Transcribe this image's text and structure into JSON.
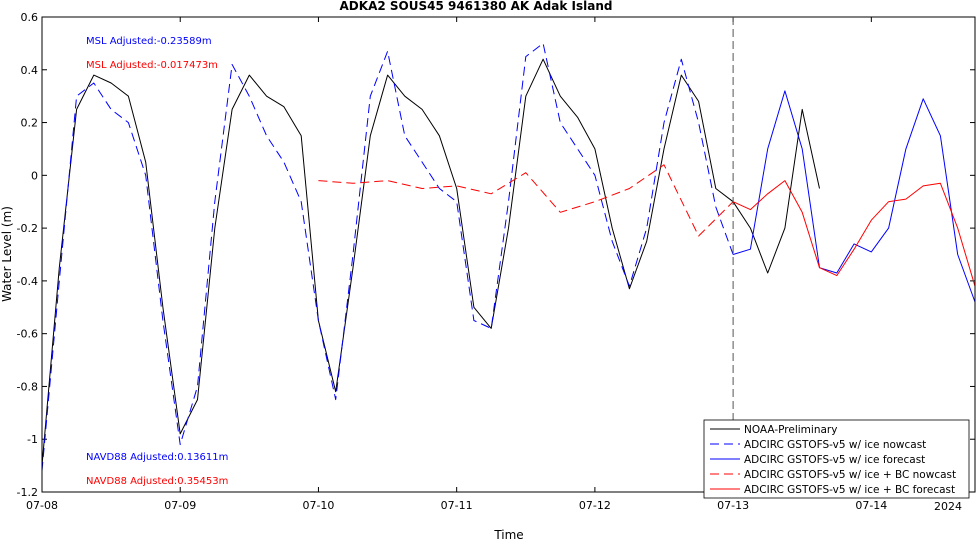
{
  "chart_data": {
    "type": "line",
    "title": "ADKA2 SOUS45 9461380 AK Adak Island",
    "xlabel": "Time",
    "ylabel": "Water Level (m)",
    "year_label": "2024",
    "xlim": [
      "07-08 00:00",
      "07-14 18:00"
    ],
    "ylim": [
      -1.2,
      0.6
    ],
    "x_ticks": [
      "07-08",
      "07-09",
      "07-10",
      "07-11",
      "07-12",
      "07-13",
      "07-14"
    ],
    "y_ticks": [
      "-1.2",
      "-1",
      "-0.8",
      "-0.6",
      "-0.4",
      "-0.2",
      "0",
      "0.2",
      "0.4",
      "0.6"
    ],
    "vertical_marker": "07-13 00:00",
    "annotations": {
      "msl_blue": "MSL Adjusted:-0.23589m",
      "msl_red": "MSL Adjusted:-0.017473m",
      "navd_blue": "NAVD88 Adjusted:0.13611m",
      "navd_red": "NAVD88 Adjusted:0.35453m"
    },
    "legend_position": "bottom-right",
    "series": [
      {
        "name": "NOAA-Preliminary",
        "color": "#000000",
        "style": "solid",
        "x": [
          "07-08 00:00",
          "07-08 03:00",
          "07-08 06:00",
          "07-08 09:00",
          "07-08 12:00",
          "07-08 15:00",
          "07-08 18:00",
          "07-08 21:00",
          "07-09 00:00",
          "07-09 03:00",
          "07-09 06:00",
          "07-09 09:00",
          "07-09 12:00",
          "07-09 15:00",
          "07-09 18:00",
          "07-09 21:00",
          "07-10 00:00",
          "07-10 03:00",
          "07-10 06:00",
          "07-10 09:00",
          "07-10 12:00",
          "07-10 15:00",
          "07-10 18:00",
          "07-10 21:00",
          "07-11 00:00",
          "07-11 03:00",
          "07-11 06:00",
          "07-11 09:00",
          "07-11 12:00",
          "07-11 15:00",
          "07-11 18:00",
          "07-11 21:00",
          "07-12 00:00",
          "07-12 03:00",
          "07-12 06:00",
          "07-12 09:00",
          "07-12 12:00",
          "07-12 15:00",
          "07-12 18:00",
          "07-12 21:00",
          "07-13 00:00",
          "07-13 03:00",
          "07-13 06:00",
          "07-13 09:00",
          "07-13 12:00",
          "07-13 15:00"
        ],
        "y": [
          -1.1,
          -0.35,
          0.25,
          0.38,
          0.35,
          0.3,
          0.05,
          -0.5,
          -0.98,
          -0.85,
          -0.2,
          0.25,
          0.38,
          0.3,
          0.26,
          0.15,
          -0.55,
          -0.82,
          -0.35,
          0.15,
          0.38,
          0.3,
          0.25,
          0.15,
          -0.05,
          -0.5,
          -0.58,
          -0.2,
          0.3,
          0.44,
          0.3,
          0.22,
          0.1,
          -0.2,
          -0.43,
          -0.25,
          0.1,
          0.38,
          0.28,
          -0.05,
          -0.1,
          -0.2,
          -0.37,
          -0.2,
          0.25,
          -0.05
        ]
      },
      {
        "name": "ADCIRC GSTOFS-v5 w/ ice nowcast",
        "color": "#0000ff",
        "style": "dashed",
        "x": [
          "07-08 00:00",
          "07-08 03:00",
          "07-08 06:00",
          "07-08 09:00",
          "07-08 12:00",
          "07-08 15:00",
          "07-08 18:00",
          "07-08 21:00",
          "07-09 00:00",
          "07-09 03:00",
          "07-09 06:00",
          "07-09 09:00",
          "07-09 12:00",
          "07-09 15:00",
          "07-09 18:00",
          "07-09 21:00",
          "07-10 00:00",
          "07-10 03:00",
          "07-10 06:00",
          "07-10 09:00",
          "07-10 12:00",
          "07-10 15:00",
          "07-10 18:00",
          "07-10 21:00",
          "07-11 00:00",
          "07-11 03:00",
          "07-11 06:00",
          "07-11 09:00",
          "07-11 12:00",
          "07-11 15:00",
          "07-11 18:00",
          "07-11 21:00",
          "07-12 00:00",
          "07-12 03:00",
          "07-12 06:00",
          "07-12 09:00",
          "07-12 12:00",
          "07-12 15:00",
          "07-12 18:00",
          "07-12 21:00",
          "07-13 00:00"
        ],
        "y": [
          -1.12,
          -0.4,
          0.3,
          0.35,
          0.25,
          0.2,
          0.0,
          -0.55,
          -1.02,
          -0.8,
          -0.1,
          0.42,
          0.3,
          0.15,
          0.05,
          -0.1,
          -0.55,
          -0.85,
          -0.3,
          0.3,
          0.47,
          0.15,
          0.05,
          -0.05,
          -0.1,
          -0.55,
          -0.58,
          -0.1,
          0.45,
          0.5,
          0.2,
          0.1,
          0.0,
          -0.25,
          -0.42,
          -0.2,
          0.2,
          0.44,
          0.2,
          -0.12,
          -0.3
        ]
      },
      {
        "name": "ADCIRC GSTOFS-v5 w/ ice forecast",
        "color": "#0000ff",
        "style": "solid",
        "x": [
          "07-13 00:00",
          "07-13 03:00",
          "07-13 06:00",
          "07-13 09:00",
          "07-13 12:00",
          "07-13 15:00",
          "07-13 18:00",
          "07-13 21:00",
          "07-14 00:00",
          "07-14 03:00",
          "07-14 06:00",
          "07-14 09:00",
          "07-14 12:00",
          "07-14 15:00",
          "07-14 18:00"
        ],
        "y": [
          -0.3,
          -0.28,
          0.1,
          0.32,
          0.1,
          -0.35,
          -0.37,
          -0.26,
          -0.29,
          -0.2,
          0.1,
          0.29,
          0.15,
          -0.3,
          -0.48
        ]
      },
      {
        "name": "ADCIRC GSTOFS-v5 w/ ice + BC nowcast",
        "color": "#ff0000",
        "style": "dashed",
        "x": [
          "07-10 00:00",
          "07-10 06:00",
          "07-10 12:00",
          "07-10 18:00",
          "07-11 00:00",
          "07-11 06:00",
          "07-11 12:00",
          "07-11 18:00",
          "07-12 00:00",
          "07-12 06:00",
          "07-12 12:00",
          "07-12 18:00",
          "07-13 00:00"
        ],
        "y": [
          -0.02,
          -0.03,
          -0.02,
          -0.05,
          -0.04,
          -0.07,
          0.01,
          -0.14,
          -0.1,
          -0.05,
          0.04,
          -0.23,
          -0.1
        ]
      },
      {
        "name": "ADCIRC GSTOFS-v5 w/ ice + BC forecast",
        "color": "#ff0000",
        "style": "solid",
        "x": [
          "07-13 00:00",
          "07-13 03:00",
          "07-13 06:00",
          "07-13 09:00",
          "07-13 12:00",
          "07-13 15:00",
          "07-13 18:00",
          "07-13 21:00",
          "07-14 00:00",
          "07-14 03:00",
          "07-14 06:00",
          "07-14 09:00",
          "07-14 12:00",
          "07-14 15:00",
          "07-14 18:00"
        ],
        "y": [
          -0.1,
          -0.13,
          -0.07,
          -0.02,
          -0.14,
          -0.35,
          -0.38,
          -0.28,
          -0.17,
          -0.1,
          -0.09,
          -0.04,
          -0.03,
          -0.2,
          -0.42
        ]
      }
    ]
  }
}
